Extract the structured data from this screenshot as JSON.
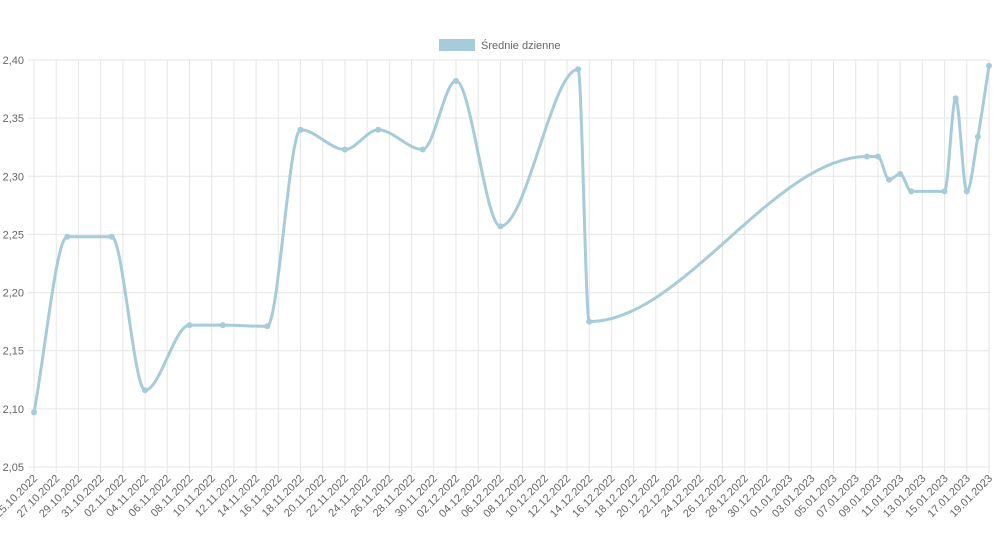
{
  "chart_data": {
    "type": "line",
    "x": [
      "25.10.2022",
      "28.10.2022",
      "01.11.2022",
      "04.11.2022",
      "08.11.2022",
      "11.11.2022",
      "15.11.2022",
      "18.11.2022",
      "22.11.2022",
      "25.11.2022",
      "29.11.2022",
      "02.12.2022",
      "06.12.2022",
      "13.12.2022",
      "14.12.2022",
      "08.01.2023",
      "09.01.2023",
      "10.01.2023",
      "11.01.2023",
      "12.01.2023",
      "15.01.2023",
      "16.01.2023",
      "17.01.2023",
      "18.01.2023",
      "19.01.2023"
    ],
    "series": [
      {
        "name": "Średnie dzienne",
        "color": "#a6cbdb",
        "values": [
          2.097,
          2.248,
          2.248,
          2.116,
          2.172,
          2.172,
          2.171,
          2.34,
          2.323,
          2.34,
          2.323,
          2.382,
          2.257,
          2.392,
          2.175,
          2.317,
          2.317,
          2.297,
          2.302,
          2.287,
          2.287,
          2.367,
          2.287,
          2.334,
          2.395
        ]
      }
    ],
    "xlim": [
      "25.10.2022",
      "19.01.2023"
    ],
    "xticks": [
      "25.10.2022",
      "27.10.2022",
      "29.10.2022",
      "31.10.2022",
      "02.11.2022",
      "04.11.2022",
      "06.11.2022",
      "08.11.2022",
      "10.11.2022",
      "12.11.2022",
      "14.11.2022",
      "16.11.2022",
      "18.11.2022",
      "20.11.2022",
      "22.11.2022",
      "24.11.2022",
      "26.11.2022",
      "28.11.2022",
      "30.11.2022",
      "02.12.2022",
      "04.12.2022",
      "06.12.2022",
      "08.12.2022",
      "10.12.2022",
      "12.12.2022",
      "14.12.2022",
      "16.12.2022",
      "18.12.2022",
      "20.12.2022",
      "22.12.2022",
      "24.12.2022",
      "26.12.2022",
      "28.12.2022",
      "30.12.2022",
      "01.01.2023",
      "03.01.2023",
      "05.01.2023",
      "07.01.2023",
      "09.01.2023",
      "11.01.2023",
      "13.01.2023",
      "15.01.2023",
      "17.01.2023",
      "19.01.2023"
    ],
    "ylim": [
      2.05,
      2.4
    ],
    "yticks": [
      {
        "value": 2.05,
        "label": "2,05"
      },
      {
        "value": 2.1,
        "label": "2,10"
      },
      {
        "value": 2.15,
        "label": "2,15"
      },
      {
        "value": 2.2,
        "label": "2,20"
      },
      {
        "value": 2.25,
        "label": "2,25"
      },
      {
        "value": 2.3,
        "label": "2,30"
      },
      {
        "value": 2.35,
        "label": "2,35"
      },
      {
        "value": 2.4,
        "label": "2,40"
      }
    ],
    "grid": true,
    "legend": "top"
  }
}
